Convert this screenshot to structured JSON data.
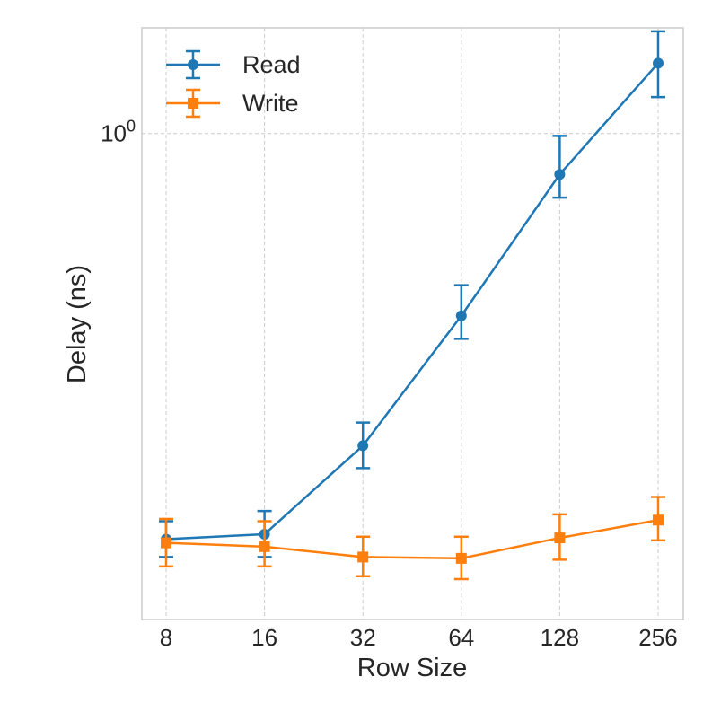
{
  "chart_data": {
    "type": "line",
    "title": "",
    "xlabel": "Row Size",
    "ylabel": "Delay (ns)",
    "x_scale": "log2",
    "y_scale": "log",
    "categories": [
      "8",
      "16",
      "32",
      "64",
      "128",
      "256"
    ],
    "x": [
      8,
      16,
      32,
      64,
      128,
      256
    ],
    "ylim": [
      0.155,
      1.5
    ],
    "y_ticks": [
      {
        "value": 1.0,
        "base": "10",
        "exponent": "0"
      }
    ],
    "grid": true,
    "legend_position": "top-left",
    "series": [
      {
        "name": "Read",
        "color": "#1f77b4",
        "marker": "circle",
        "values": [
          0.211,
          0.215,
          0.302,
          0.497,
          0.855,
          1.31
        ],
        "err_low": [
          0.197,
          0.197,
          0.277,
          0.455,
          0.782,
          1.15
        ],
        "err_high": [
          0.226,
          0.235,
          0.33,
          0.559,
          0.991,
          1.48
        ]
      },
      {
        "name": "Write",
        "color": "#ff7f0e",
        "marker": "square",
        "values": [
          0.208,
          0.205,
          0.197,
          0.196,
          0.212,
          0.227
        ],
        "err_low": [
          0.19,
          0.19,
          0.183,
          0.181,
          0.195,
          0.21
        ],
        "err_high": [
          0.228,
          0.226,
          0.213,
          0.213,
          0.232,
          0.248
        ]
      }
    ]
  }
}
